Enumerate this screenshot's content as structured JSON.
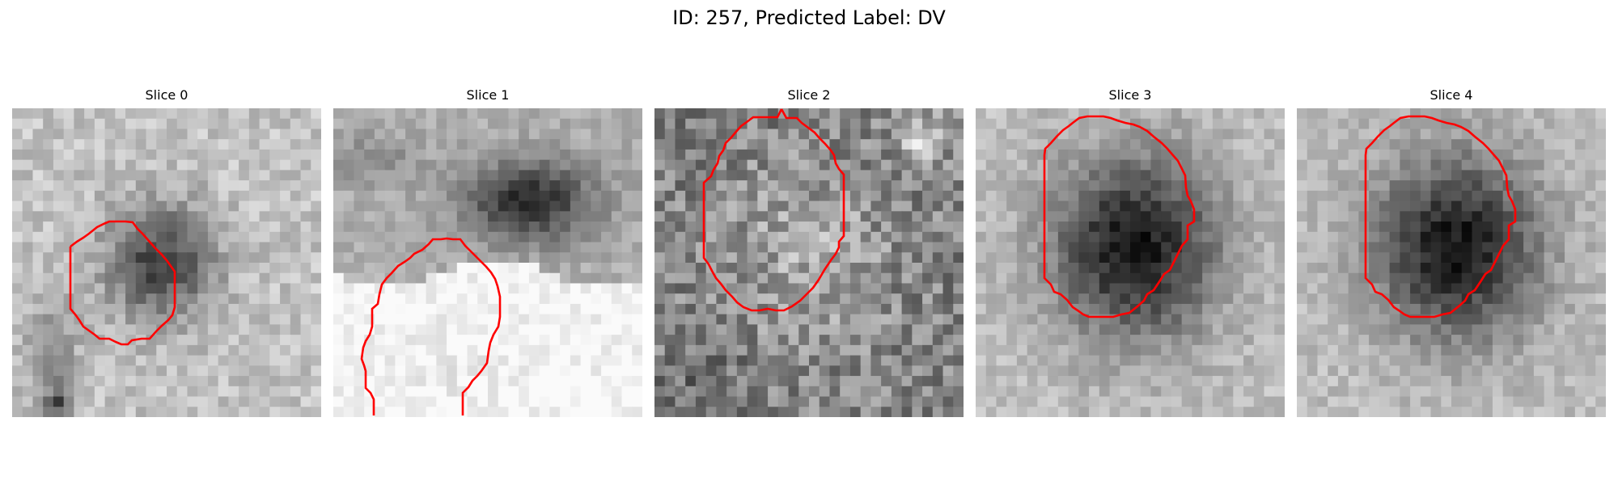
{
  "figure": {
    "title": "ID: 257, Predicted Label: DV"
  },
  "slices": [
    {
      "title": "Slice 0"
    },
    {
      "title": "Slice 1"
    },
    {
      "title": "Slice 2"
    },
    {
      "title": "Slice 3"
    },
    {
      "title": "Slice 4"
    }
  ]
}
